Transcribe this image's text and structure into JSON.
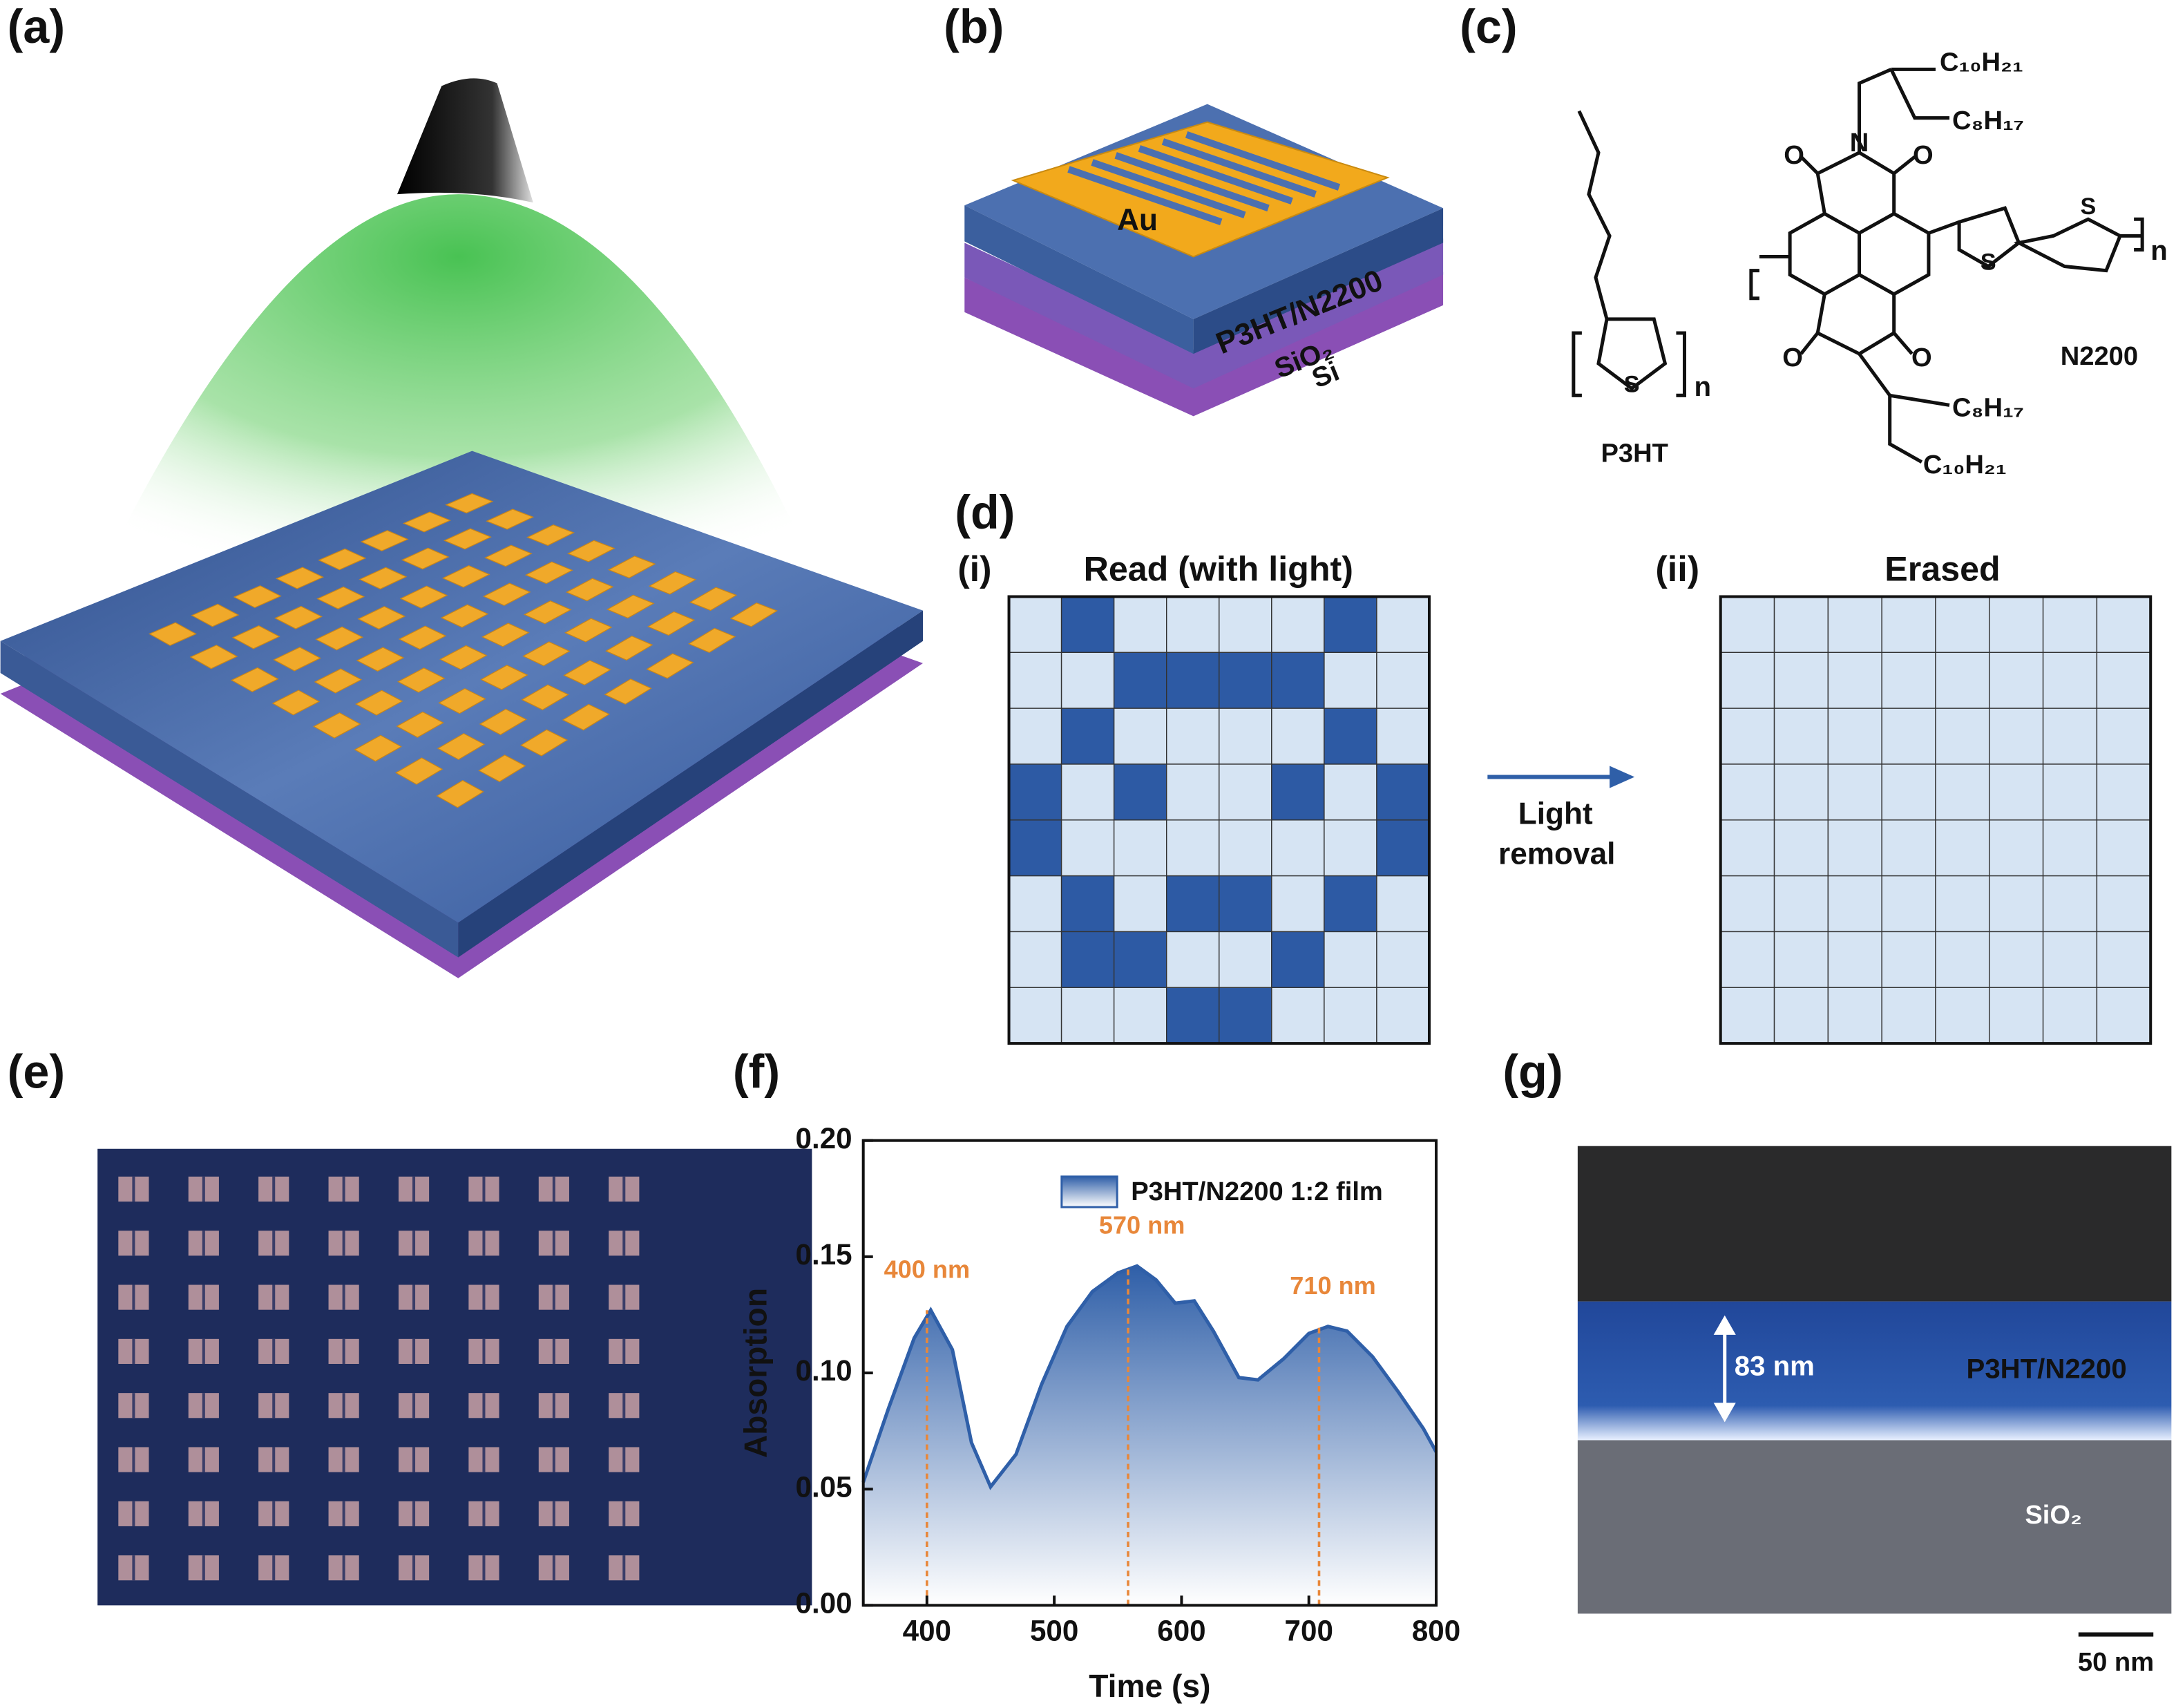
{
  "panel_labels": [
    "(a)",
    "(b)",
    "(c)",
    "(d)",
    "(e)",
    "(f)",
    "(g)"
  ],
  "panel_b": {
    "electrode": "Au",
    "layers": [
      "P3HT/N2200",
      "SiO₂",
      "Si"
    ]
  },
  "panel_c": {
    "p3ht": {
      "name": "P3HT",
      "sulfur": "S",
      "repeat": "n"
    },
    "n2200": {
      "name": "N2200",
      "chain_top_long": "C₁₀H₂₁",
      "chain_top_short": "C₈H₁₇",
      "chain_bottom_short": "C₈H₁₇",
      "chain_bottom_long": "C₁₀H₂₁",
      "nitrogen": "N",
      "oxygen": "O",
      "sulfur": "S",
      "repeat": "n"
    }
  },
  "panel_d": {
    "read": {
      "label": "(i)",
      "title": "Read (with light)",
      "pattern": [
        [
          0,
          1,
          0,
          0,
          0,
          0,
          1,
          0
        ],
        [
          0,
          0,
          1,
          1,
          1,
          1,
          0,
          0
        ],
        [
          0,
          1,
          0,
          0,
          0,
          0,
          1,
          0
        ],
        [
          1,
          0,
          1,
          0,
          0,
          1,
          0,
          1
        ],
        [
          1,
          0,
          0,
          0,
          0,
          0,
          0,
          1
        ],
        [
          0,
          1,
          0,
          1,
          1,
          0,
          1,
          0
        ],
        [
          0,
          1,
          1,
          0,
          0,
          1,
          0,
          0
        ],
        [
          0,
          0,
          0,
          1,
          1,
          0,
          0,
          0
        ]
      ]
    },
    "erased": {
      "label": "(ii)",
      "title": "Erased"
    },
    "arrow_label": [
      "Light",
      "removal"
    ]
  },
  "panel_g": {
    "thickness": "83 nm",
    "film": "P3HT/N2200",
    "substrate": "SiO₂",
    "scale_bar": "50 nm"
  },
  "chart_data": {
    "type": "area",
    "xlabel": "Time (s)",
    "ylabel": "Absorption",
    "x": [
      350,
      370,
      390,
      403,
      420,
      435,
      450,
      470,
      490,
      510,
      530,
      550,
      565,
      580,
      595,
      610,
      625,
      645,
      660,
      680,
      700,
      715,
      730,
      750,
      770,
      790,
      800
    ],
    "series": [
      {
        "name": "P3HT/N2200 1:2 film",
        "color": "#2f5fa8",
        "values": [
          0.053,
          0.085,
          0.115,
          0.127,
          0.11,
          0.07,
          0.051,
          0.065,
          0.095,
          0.12,
          0.135,
          0.143,
          0.146,
          0.14,
          0.13,
          0.131,
          0.118,
          0.098,
          0.097,
          0.106,
          0.117,
          0.12,
          0.118,
          0.107,
          0.092,
          0.076,
          0.066
        ]
      }
    ],
    "xlim": [
      350,
      800
    ],
    "ylim": [
      0,
      0.2
    ],
    "xticks": [
      400,
      500,
      600,
      700,
      800
    ],
    "yticks": [
      {
        "value": 0,
        "label": "0.00"
      },
      {
        "value": 0.05,
        "label": "0.05"
      },
      {
        "value": 0.1,
        "label": "0.10"
      },
      {
        "value": 0.15,
        "label": "0.15"
      },
      {
        "value": 0.2,
        "label": "0.20"
      }
    ],
    "annotations": [
      {
        "text": "400 nm",
        "x": 400,
        "y": 0.127
      },
      {
        "text": "570 nm",
        "x": 558,
        "y": 0.146
      },
      {
        "text": "710 nm",
        "x": 708,
        "y": 0.12
      }
    ],
    "annotation_color": "#e8873a",
    "legend": "upper right"
  }
}
